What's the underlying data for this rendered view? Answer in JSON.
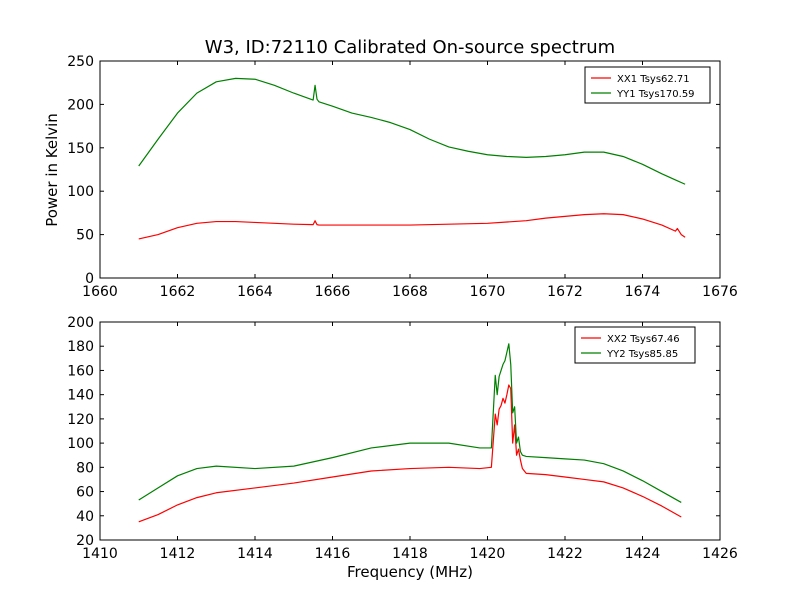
{
  "figure": {
    "title": "W3, ID:72110 Calibrated On-source spectrum",
    "xlabel": "Frequency (MHz)",
    "ylabel": "Power in Kelvin"
  },
  "chart_data": [
    {
      "type": "line",
      "xlim": [
        1660,
        1676
      ],
      "ylim": [
        0,
        250
      ],
      "xticks": [
        1660,
        1662,
        1664,
        1666,
        1668,
        1670,
        1672,
        1674,
        1676
      ],
      "yticks": [
        0,
        50,
        100,
        150,
        200,
        250
      ],
      "legend_position": "top-right",
      "grid": false,
      "series": [
        {
          "name": "XX1 Tsys62.71",
          "color": "#ff0000",
          "x": [
            1661.0,
            1661.5,
            1662.0,
            1662.5,
            1663.0,
            1663.5,
            1664.0,
            1664.5,
            1665.0,
            1665.5,
            1665.55,
            1665.6,
            1665.65,
            1666.0,
            1667.0,
            1668.0,
            1669.0,
            1670.0,
            1670.5,
            1671.0,
            1671.5,
            1672.0,
            1672.5,
            1673.0,
            1673.5,
            1674.0,
            1674.5,
            1674.85,
            1674.9,
            1675.0,
            1675.1
          ],
          "y": [
            45,
            50,
            58,
            63,
            65,
            65,
            64,
            63,
            62,
            61.5,
            66,
            61.5,
            61,
            61,
            61,
            61,
            62,
            63,
            64.5,
            66,
            69,
            71,
            73,
            74,
            73,
            68,
            61,
            54,
            57,
            50,
            47
          ]
        },
        {
          "name": "YY1 Tsys170.59",
          "color": "#008000",
          "x": [
            1661.0,
            1661.5,
            1662.0,
            1662.5,
            1663.0,
            1663.5,
            1664.0,
            1664.5,
            1665.0,
            1665.5,
            1665.55,
            1665.6,
            1665.65,
            1666.0,
            1666.5,
            1667.0,
            1667.5,
            1668.0,
            1668.5,
            1669.0,
            1669.5,
            1670.0,
            1670.5,
            1671.0,
            1671.5,
            1672.0,
            1672.5,
            1673.0,
            1673.5,
            1674.0,
            1674.5,
            1674.85,
            1675.1
          ],
          "y": [
            129,
            160,
            190,
            213,
            226,
            230,
            229,
            222,
            213,
            205,
            222,
            206,
            203,
            198,
            190,
            185,
            179,
            171,
            160,
            151,
            146,
            142,
            140,
            139,
            140,
            142,
            145,
            145,
            140,
            131,
            120,
            113,
            108
          ]
        }
      ]
    },
    {
      "type": "line",
      "xlim": [
        1410,
        1426
      ],
      "ylim": [
        20,
        200
      ],
      "xticks": [
        1410,
        1412,
        1414,
        1416,
        1418,
        1420,
        1422,
        1424,
        1426
      ],
      "yticks": [
        20,
        40,
        60,
        80,
        100,
        120,
        140,
        160,
        180,
        200
      ],
      "legend_position": "top-right",
      "grid": false,
      "series": [
        {
          "name": "XX2 Tsys67.46",
          "color": "#ff0000",
          "x": [
            1411.0,
            1411.5,
            1412.0,
            1412.5,
            1413.0,
            1414.0,
            1415.0,
            1416.0,
            1417.0,
            1418.0,
            1419.0,
            1419.8,
            1420.1,
            1420.2,
            1420.25,
            1420.3,
            1420.35,
            1420.4,
            1420.45,
            1420.5,
            1420.55,
            1420.6,
            1420.65,
            1420.7,
            1420.75,
            1420.8,
            1420.85,
            1420.9,
            1421.0,
            1421.5,
            1422.0,
            1422.5,
            1423.0,
            1423.5,
            1424.0,
            1424.5,
            1425.0
          ],
          "y": [
            35,
            41,
            49,
            55,
            59,
            63,
            67,
            72,
            77,
            79,
            80,
            79,
            80,
            124,
            115,
            128,
            131,
            137,
            133,
            140,
            148,
            145,
            100,
            115,
            90,
            95,
            86,
            79,
            75,
            74,
            72,
            70,
            68,
            63,
            56,
            48,
            39
          ]
        },
        {
          "name": "YY2 Tsys85.85",
          "color": "#008000",
          "x": [
            1411.0,
            1411.5,
            1412.0,
            1412.5,
            1413.0,
            1414.0,
            1415.0,
            1416.0,
            1417.0,
            1418.0,
            1419.0,
            1419.8,
            1420.1,
            1420.2,
            1420.25,
            1420.3,
            1420.35,
            1420.4,
            1420.45,
            1420.5,
            1420.55,
            1420.6,
            1420.65,
            1420.7,
            1420.75,
            1420.8,
            1420.85,
            1420.9,
            1421.0,
            1421.5,
            1422.0,
            1422.5,
            1423.0,
            1423.5,
            1424.0,
            1424.5,
            1425.0
          ],
          "y": [
            53,
            63,
            73,
            79,
            81,
            79,
            81,
            88,
            96,
            100,
            100,
            96,
            96,
            156,
            140,
            155,
            160,
            165,
            168,
            175,
            182,
            165,
            125,
            130,
            100,
            105,
            93,
            90,
            89,
            88,
            87,
            86,
            83,
            77,
            69,
            60,
            51
          ]
        }
      ]
    }
  ]
}
